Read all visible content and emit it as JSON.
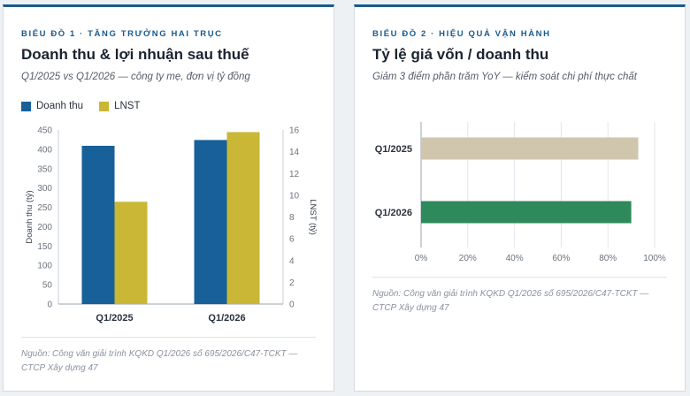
{
  "colors": {
    "accent": "#1a5a8c",
    "revenue": "#17609a",
    "profit": "#c9b735",
    "cost_2025": "#cfc6ad",
    "cost_2026": "#2e8a5a"
  },
  "card1": {
    "eyebrow": "Biểu đồ 1 · Tăng trưởng hai trục",
    "title": "Doanh thu & lợi nhuận sau thuế",
    "subtitle": "Q1/2025 vs Q1/2026 — công ty mẹ, đơn vị tỷ đồng",
    "source": "Nguồn: Công văn giải trình KQKD Q1/2026 số 695/2026/C47-TCKT — CTCP Xây dựng 47"
  },
  "card2": {
    "eyebrow": "Biểu đồ 2 · Hiệu quả vận hành",
    "title": "Tỷ lệ giá vốn / doanh thu",
    "subtitle": "Giảm 3 điểm phần trăm YoY — kiểm soát chi phí thực chất",
    "source": "Nguồn: Công văn giải trình KQKD Q1/2026 số 695/2026/C47-TCKT — CTCP Xây dựng 47"
  },
  "chart_data": [
    {
      "type": "bar",
      "categories": [
        "Q1/2025",
        "Q1/2026"
      ],
      "series": [
        {
          "name": "Doanh thu",
          "axis": "left",
          "values": [
            409,
            424
          ]
        },
        {
          "name": "LNST",
          "axis": "right",
          "values": [
            9.4,
            15.8
          ]
        }
      ],
      "ylabel": "Doanh thu (tỷ)",
      "y2label": "LNST (tỷ)",
      "ylim": [
        0,
        450
      ],
      "y2lim": [
        0,
        16
      ],
      "yticks": [
        0,
        50,
        100,
        150,
        200,
        250,
        300,
        350,
        400,
        450
      ],
      "y2ticks": [
        0,
        2,
        4,
        6,
        8,
        10,
        12,
        14,
        16
      ],
      "grid": false,
      "legend": "top-left"
    },
    {
      "type": "bar",
      "orientation": "horizontal",
      "categories": [
        "Q1/2025",
        "Q1/2026"
      ],
      "values": [
        93,
        90
      ],
      "xlim": [
        0,
        100
      ],
      "xticks": [
        "0%",
        "20%",
        "40%",
        "60%",
        "80%",
        "100%"
      ],
      "grid": "vertical"
    }
  ]
}
